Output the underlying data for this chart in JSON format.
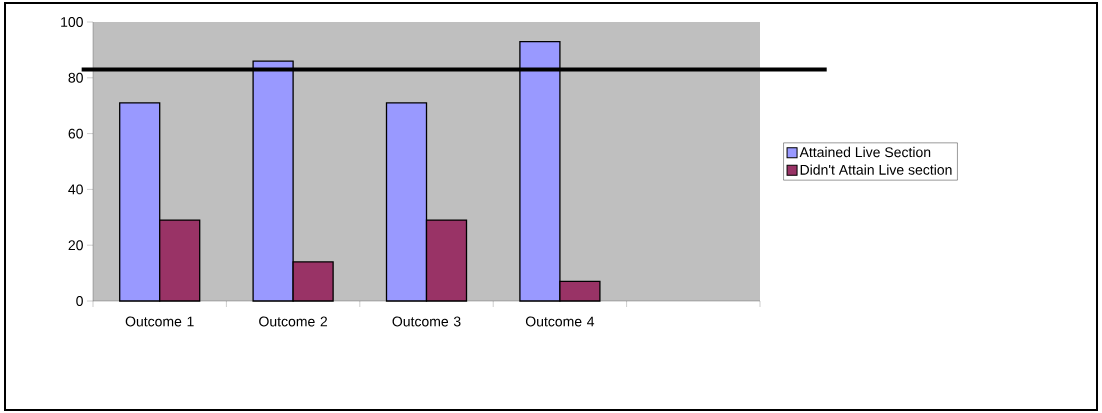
{
  "chart_data": {
    "type": "bar",
    "categories": [
      "Outcome 1",
      "Outcome 2",
      "Outcome 3",
      "Outcome 4",
      null
    ],
    "series": [
      {
        "name": "Attained Live Section",
        "color": "#9999ff",
        "values": [
          71,
          86,
          71,
          93,
          null
        ]
      },
      {
        "name": "Didn't Attain Live section",
        "color": "#993366",
        "values": [
          29,
          14,
          29,
          7,
          null
        ]
      }
    ],
    "ylim": [
      0,
      100
    ],
    "yticks": [
      0,
      20,
      40,
      60,
      80,
      100
    ],
    "ref_lines": [
      {
        "axis": "y",
        "value": 83,
        "color": "#000000",
        "line_style": "solid"
      }
    ],
    "grid": false,
    "legend": "right"
  }
}
